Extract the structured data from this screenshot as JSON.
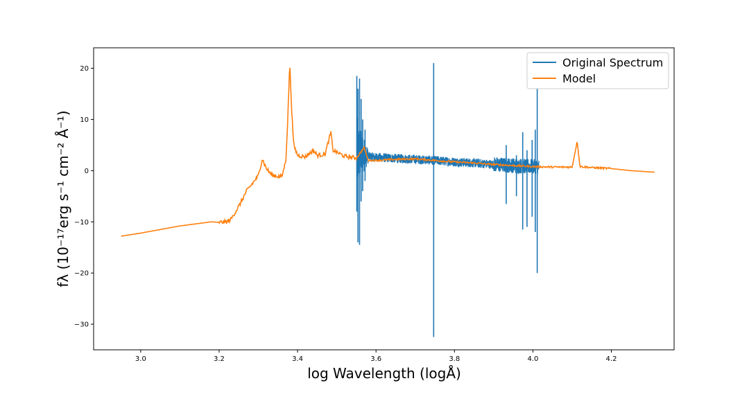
{
  "chart_data": {
    "type": "line",
    "xlabel": "log Wavelength (logÅ)",
    "ylabel": "fλ (10⁻¹⁷erg s⁻¹ cm⁻² Å⁻¹)",
    "xlim": [
      2.88,
      4.36
    ],
    "ylim": [
      -35,
      24
    ],
    "xticks": [
      3.0,
      3.2,
      3.4,
      3.6,
      3.8,
      4.0,
      4.2
    ],
    "xtick_labels": [
      "3.0",
      "3.2",
      "3.4",
      "3.6",
      "3.8",
      "4.0",
      "4.2"
    ],
    "yticks": [
      20,
      10,
      0,
      -10,
      -20,
      -30
    ],
    "ytick_labels": [
      "20",
      "10",
      "0",
      "−10",
      "−20",
      "−30"
    ],
    "grid": false,
    "legend_position": "top-right",
    "series": [
      {
        "name": "Original Spectrum",
        "color": "#1f77b4",
        "x_range": [
          3.551,
          4.016
        ],
        "baseline": [
          [
            3.551,
            3.5
          ],
          [
            3.56,
            3.2
          ],
          [
            3.58,
            2.8
          ],
          [
            3.6,
            2.6
          ],
          [
            3.65,
            2.4
          ],
          [
            3.7,
            2.2
          ],
          [
            3.75,
            2.0
          ],
          [
            3.8,
            1.7
          ],
          [
            3.85,
            1.5
          ],
          [
            3.9,
            1.2
          ],
          [
            3.95,
            1.0
          ],
          [
            4.0,
            0.8
          ],
          [
            4.016,
            0.7
          ]
        ],
        "spikes": [
          {
            "x": 3.551,
            "min": -8,
            "max": 18.5
          },
          {
            "x": 3.554,
            "min": -14,
            "max": 16
          },
          {
            "x": 3.558,
            "min": -14.5,
            "max": 18
          },
          {
            "x": 3.562,
            "min": -6,
            "max": 14
          },
          {
            "x": 3.566,
            "min": -4,
            "max": 10
          },
          {
            "x": 3.572,
            "min": -2,
            "max": 8
          },
          {
            "x": 3.747,
            "min": -32.5,
            "max": 21
          },
          {
            "x": 3.932,
            "min": -6.5,
            "max": 5
          },
          {
            "x": 3.958,
            "min": -5,
            "max": 3
          },
          {
            "x": 3.974,
            "min": -11.5,
            "max": 7.5
          },
          {
            "x": 3.985,
            "min": -11,
            "max": 4
          },
          {
            "x": 3.998,
            "min": -9,
            "max": 6
          },
          {
            "x": 4.006,
            "min": -12,
            "max": 8
          },
          {
            "x": 4.011,
            "min": -20,
            "max": 16
          }
        ]
      },
      {
        "name": "Model",
        "color": "#ff7f0e",
        "x": [
          2.95,
          3.0,
          3.05,
          3.1,
          3.15,
          3.18,
          3.2,
          3.22,
          3.23,
          3.25,
          3.27,
          3.29,
          3.3,
          3.31,
          3.32,
          3.33,
          3.34,
          3.36,
          3.37,
          3.375,
          3.38,
          3.385,
          3.39,
          3.4,
          3.42,
          3.44,
          3.45,
          3.47,
          3.485,
          3.49,
          3.52,
          3.55,
          3.57,
          3.58,
          3.6,
          3.65,
          3.7,
          3.75,
          3.8,
          3.85,
          3.9,
          3.95,
          4.0,
          4.05,
          4.1,
          4.113,
          4.12,
          4.15,
          4.2,
          4.25,
          4.31
        ],
        "y": [
          -12.8,
          -12.2,
          -11.5,
          -10.8,
          -10.3,
          -10.0,
          -10.1,
          -10.0,
          -9.5,
          -7.0,
          -4.0,
          -2.0,
          -1.0,
          2.3,
          0.5,
          -0.5,
          -1.0,
          -1.2,
          2.0,
          10.0,
          21.0,
          12.0,
          5.0,
          3.0,
          2.7,
          4.0,
          3.0,
          3.2,
          7.5,
          4.0,
          2.8,
          2.5,
          4.5,
          2.0,
          2.0,
          2.2,
          2.3,
          2.0,
          1.7,
          1.5,
          1.2,
          1.0,
          0.8,
          0.7,
          0.7,
          5.8,
          0.8,
          0.6,
          0.4,
          0.0,
          -0.3
        ]
      }
    ]
  }
}
